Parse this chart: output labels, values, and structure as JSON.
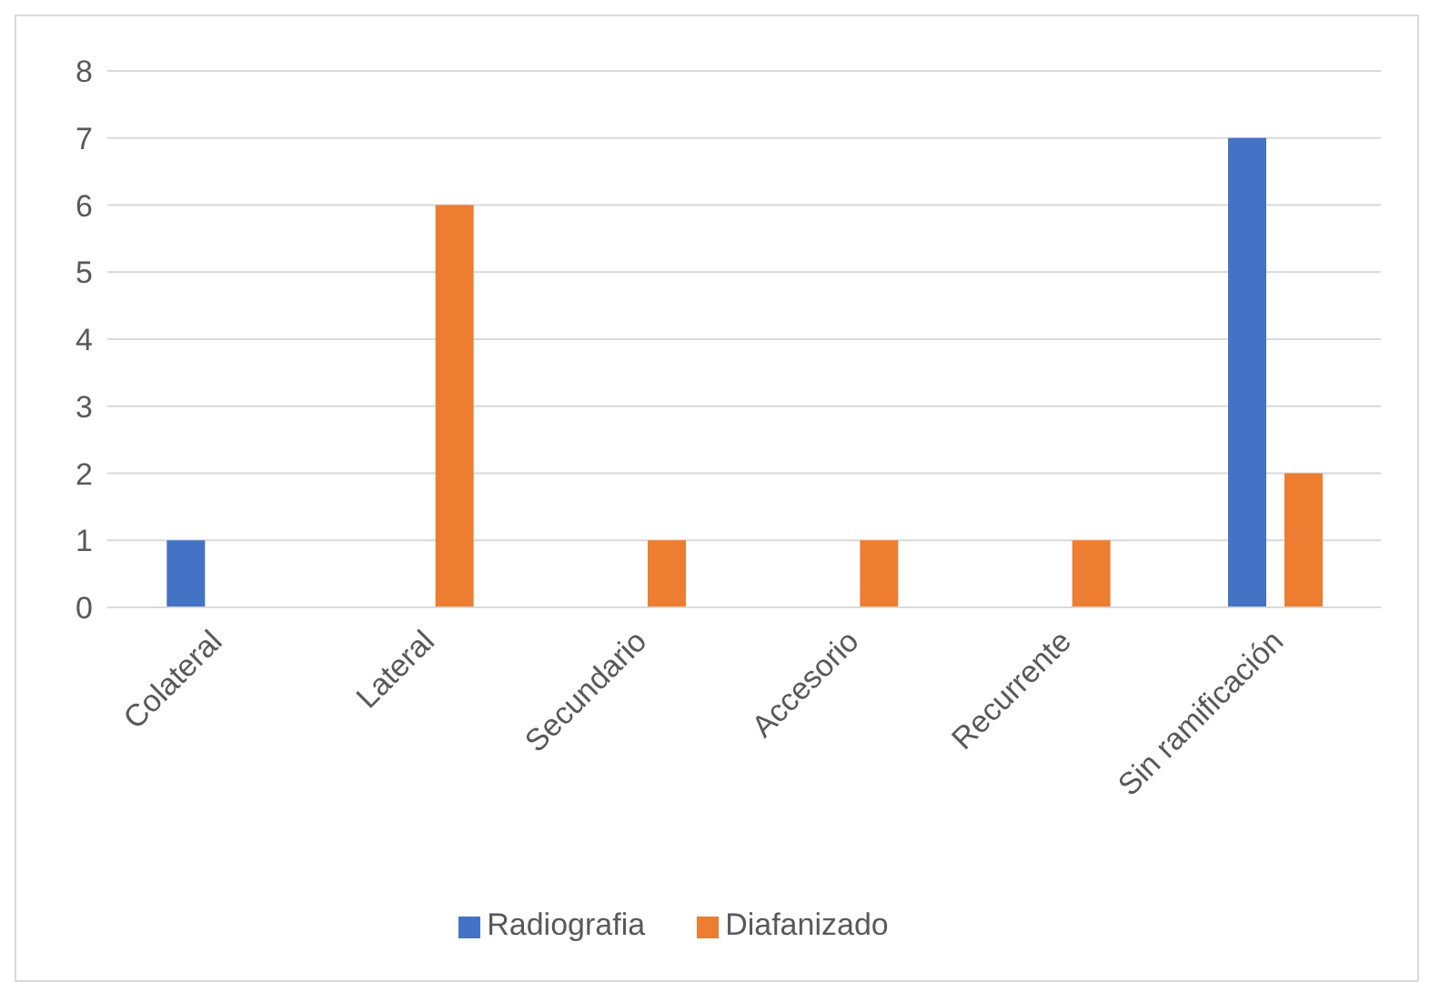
{
  "chart_data": {
    "type": "bar",
    "categories": [
      "Colateral",
      "Lateral",
      "Secundario",
      "Accesorio",
      "Recurrente",
      "Sin ramificación"
    ],
    "series": [
      {
        "name": "Radiografia",
        "color": "#4472c4",
        "values": [
          1,
          0,
          0,
          0,
          0,
          7
        ]
      },
      {
        "name": "Diafanizado",
        "color": "#ed7d31",
        "values": [
          0,
          6,
          1,
          1,
          1,
          2
        ]
      }
    ],
    "ylim": [
      0,
      8
    ],
    "yticks": [
      0,
      1,
      2,
      3,
      4,
      5,
      6,
      7,
      8
    ],
    "grid": "y",
    "legend": "bottom"
  }
}
